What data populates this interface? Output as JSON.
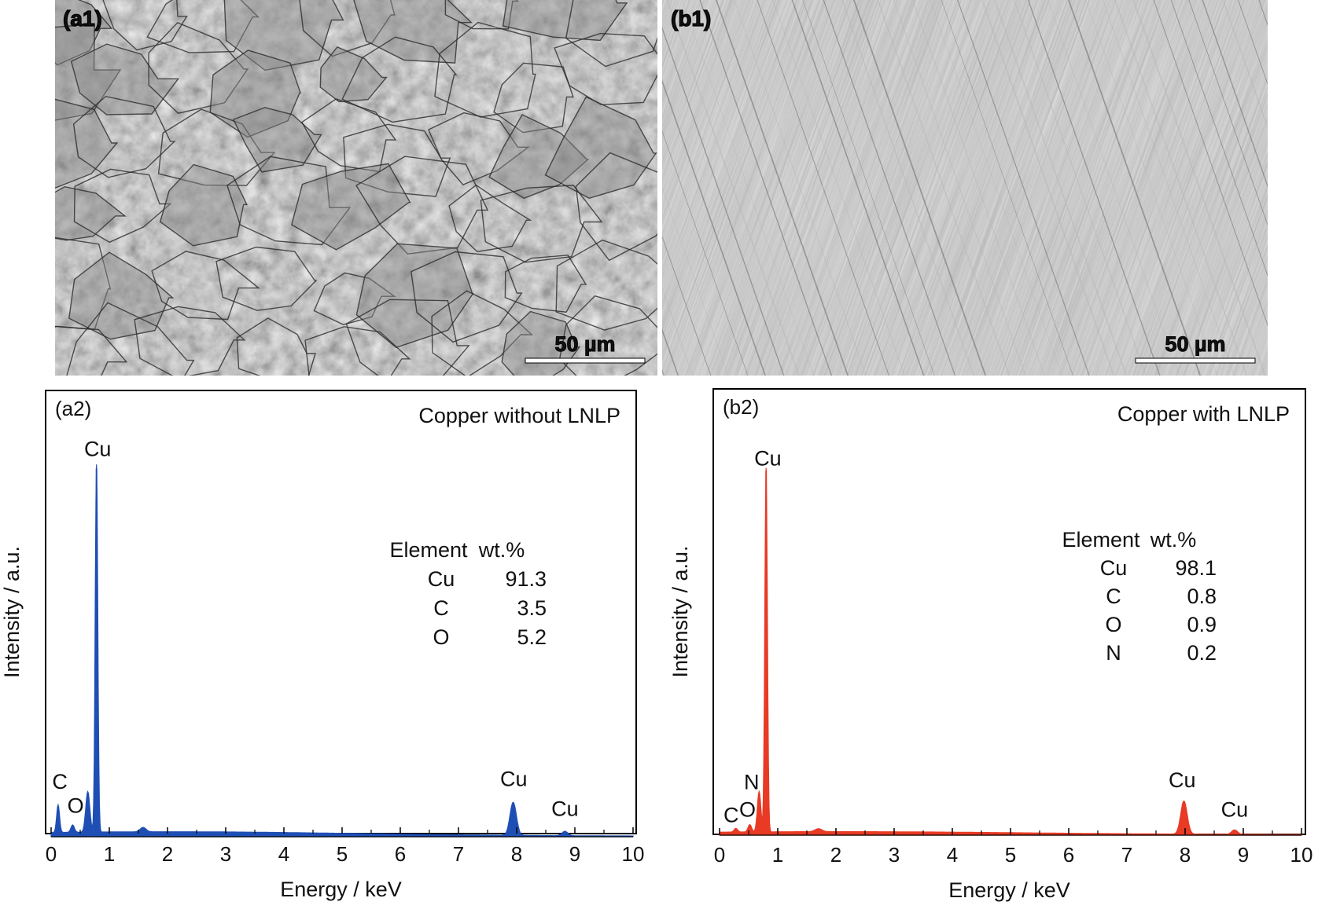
{
  "micrographs": [
    {
      "panel_label": "(a1)",
      "scale_bar": "50 µm",
      "texture": "etched"
    },
    {
      "panel_label": "(b1)",
      "scale_bar": "50 µm",
      "texture": "scratched"
    }
  ],
  "chart_data": [
    {
      "type": "area",
      "panel_label": "(a2)",
      "title": "Copper without LNLP",
      "xlabel": "Energy / keV",
      "ylabel": "Intensity / a.u.",
      "xlim": [
        0,
        10
      ],
      "ylim": [
        0,
        100
      ],
      "xticks": [
        "0",
        "1",
        "2",
        "3",
        "4",
        "5",
        "6",
        "7",
        "8",
        "9",
        "10"
      ],
      "grid": false,
      "legend": "none",
      "color": "#1f4fb4",
      "baseline": 1.2,
      "peaks": [
        {
          "label": "C",
          "x": 0.12,
          "height": 7.5,
          "width": 0.025
        },
        {
          "label": "O",
          "x": 0.37,
          "height": 2.0,
          "width": 0.03
        },
        {
          "label": "",
          "x": 0.63,
          "height": 11.0,
          "width": 0.035
        },
        {
          "label": "Cu",
          "x": 0.78,
          "height": 100,
          "width": 0.022
        },
        {
          "label": "",
          "x": 1.58,
          "height": 1.2,
          "width": 0.05
        },
        {
          "label": "Cu",
          "x": 7.94,
          "height": 9.0,
          "width": 0.055
        },
        {
          "label": "Cu",
          "x": 8.83,
          "height": 1.2,
          "width": 0.05
        }
      ],
      "annotations": [
        {
          "text": "C",
          "x": 0.15,
          "y": 13.0
        },
        {
          "text": "O",
          "x": 0.42,
          "y": 6.5
        },
        {
          "text": "Cu",
          "x": 0.8,
          "y": 103.5
        },
        {
          "text": "Cu",
          "x": 7.95,
          "y": 13.8
        },
        {
          "text": "Cu",
          "x": 8.83,
          "y": 5.7
        }
      ],
      "composition_table": {
        "headers": [
          "Element",
          "wt.%"
        ],
        "rows": [
          [
            "Cu",
            "91.3"
          ],
          [
            "C",
            "3.5"
          ],
          [
            "O",
            "5.2"
          ]
        ]
      }
    },
    {
      "type": "area",
      "panel_label": "(b2)",
      "title": "Copper with LNLP",
      "xlabel": "Energy / keV",
      "ylabel": "Intensity / a.u.",
      "xlim": [
        0,
        10
      ],
      "ylim": [
        0,
        100
      ],
      "xticks": [
        "0",
        "1",
        "2",
        "3",
        "4",
        "5",
        "6",
        "7",
        "8",
        "9",
        "10"
      ],
      "grid": false,
      "legend": "none",
      "color": "#e83a24",
      "baseline": 0.8,
      "peaks": [
        {
          "label": "C",
          "x": 0.28,
          "height": 1.0,
          "width": 0.03
        },
        {
          "label": "O",
          "x": 0.52,
          "height": 2.0,
          "width": 0.03
        },
        {
          "label": "N",
          "x": 0.68,
          "height": 11.0,
          "width": 0.03
        },
        {
          "label": "Cu",
          "x": 0.8,
          "height": 99,
          "width": 0.022
        },
        {
          "label": "",
          "x": 1.7,
          "height": 0.8,
          "width": 0.06
        },
        {
          "label": "Cu",
          "x": 7.98,
          "height": 9.0,
          "width": 0.055
        },
        {
          "label": "Cu",
          "x": 8.85,
          "height": 1.2,
          "width": 0.05
        }
      ],
      "annotations": [
        {
          "text": "C",
          "x": 0.2,
          "y": 3.5
        },
        {
          "text": "O",
          "x": 0.48,
          "y": 5.0
        },
        {
          "text": "N",
          "x": 0.55,
          "y": 12.5
        },
        {
          "text": "Cu",
          "x": 0.83,
          "y": 100.5
        },
        {
          "text": "Cu",
          "x": 7.95,
          "y": 13.0
        },
        {
          "text": "Cu",
          "x": 8.85,
          "y": 5.0
        }
      ],
      "composition_table": {
        "headers": [
          "Element",
          "wt.%"
        ],
        "rows": [
          [
            "Cu",
            "98.1"
          ],
          [
            "C",
            "0.8"
          ],
          [
            "O",
            "0.9"
          ],
          [
            "N",
            "0.2"
          ]
        ]
      }
    }
  ]
}
